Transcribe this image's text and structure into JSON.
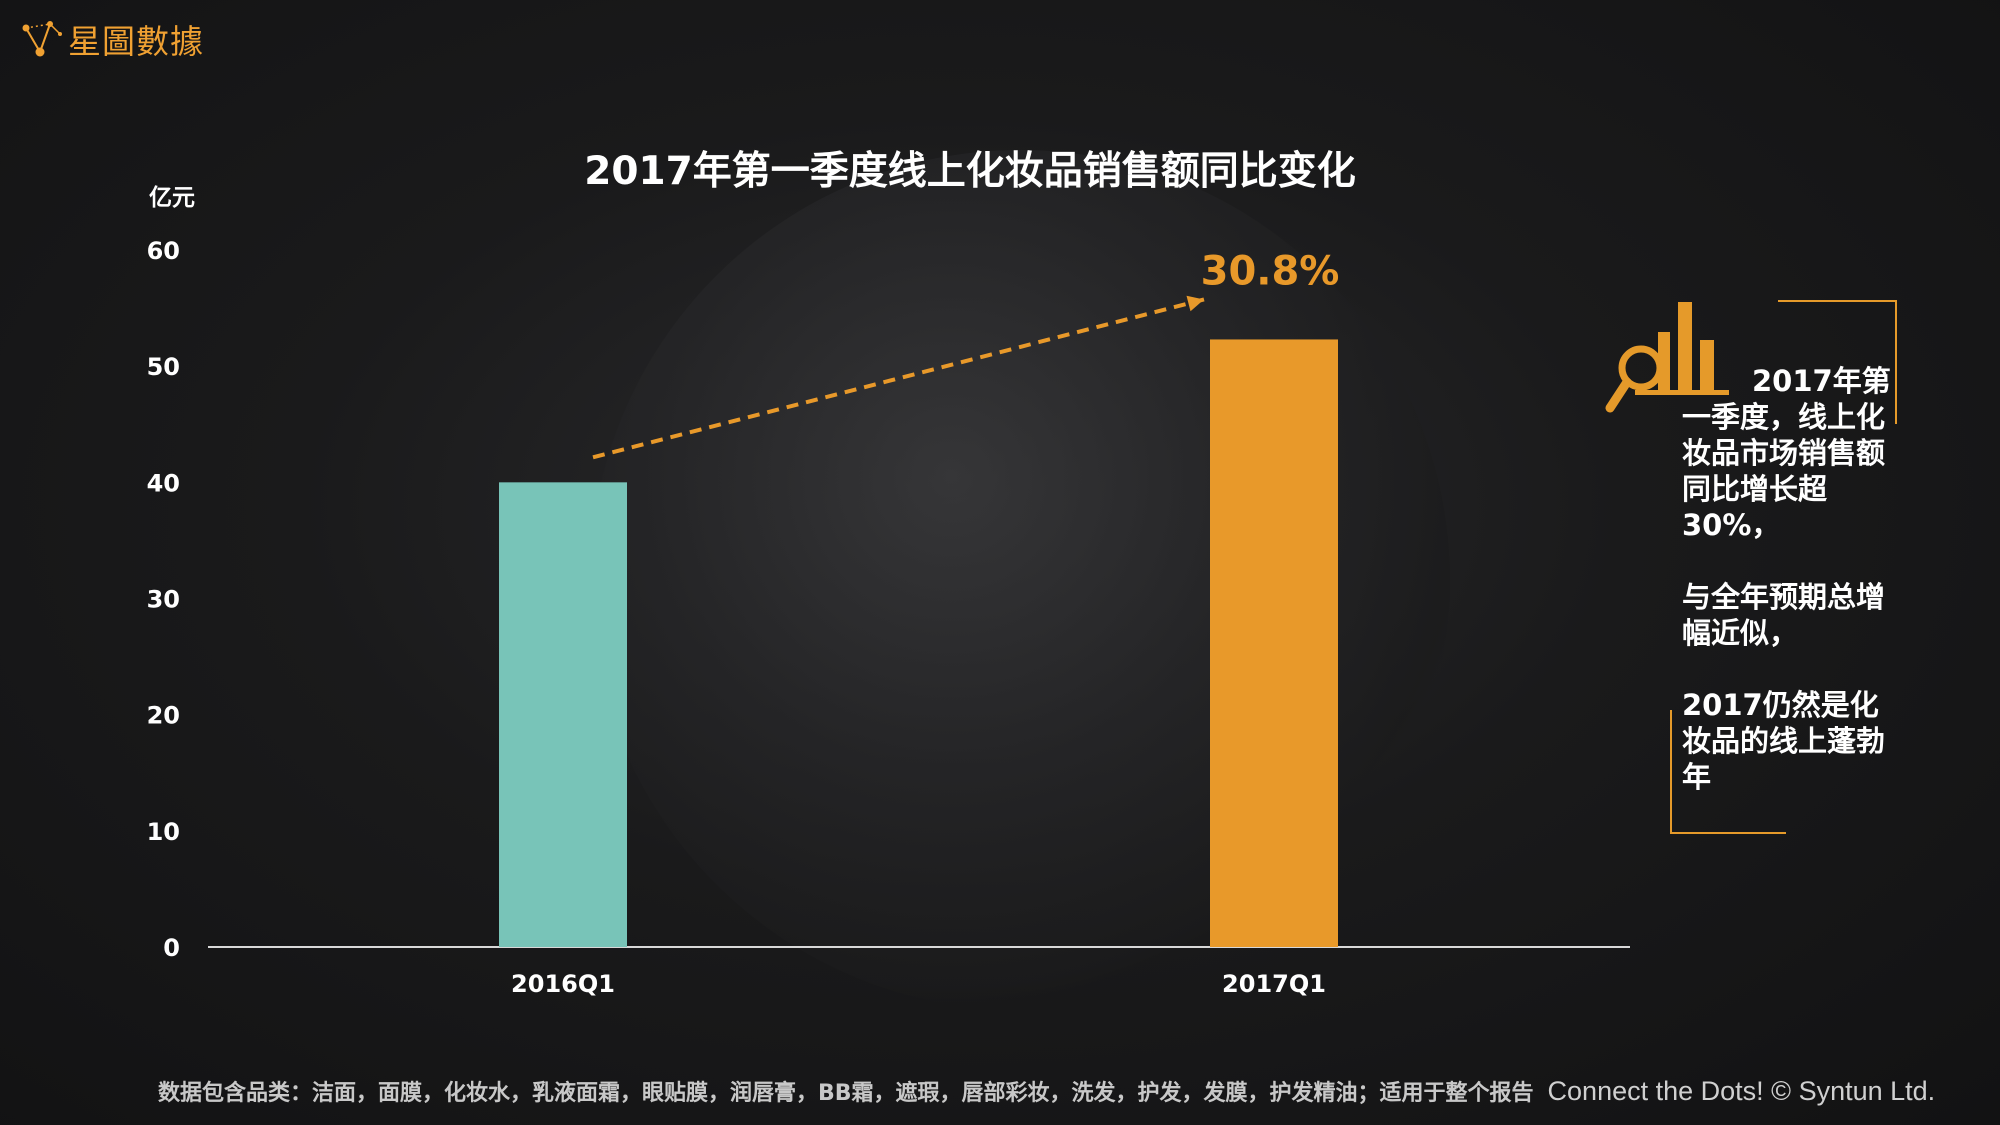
{
  "brand": {
    "name": "星圖數據"
  },
  "chart_data": {
    "type": "bar",
    "title": "2017年第一季度线上化妆品销售额同比变化",
    "ylabel": "亿元",
    "ylim": [
      0,
      60
    ],
    "yticks": [
      "0",
      "10",
      "20",
      "30",
      "40",
      "50",
      "60"
    ],
    "categories": [
      "2016Q1",
      "2017Q1"
    ],
    "values": [
      40,
      52.3
    ],
    "bar_colors": [
      "#78c4b8",
      "#e8992a"
    ],
    "annotation": {
      "text": "30.8%",
      "color": "#e8992a"
    },
    "grid": false
  },
  "callout": {
    "paragraphs": [
      "2017年第一季度，线上化妆品市场销售额同比增长超30%，",
      "与全年预期总增幅近似，",
      "2017仍然是化妆品的线上蓬勃年"
    ],
    "accent": "#e59a2a"
  },
  "footer": {
    "note": "数据包含品类：洁面，面膜，化妆水，乳液面霜，眼贴膜，润唇膏，BB霜，遮瑕，唇部彩妆，洗发，护发，发膜，护发精油；适用于整个报告",
    "brand": "Connect the Dots! © Syntun Ltd."
  }
}
